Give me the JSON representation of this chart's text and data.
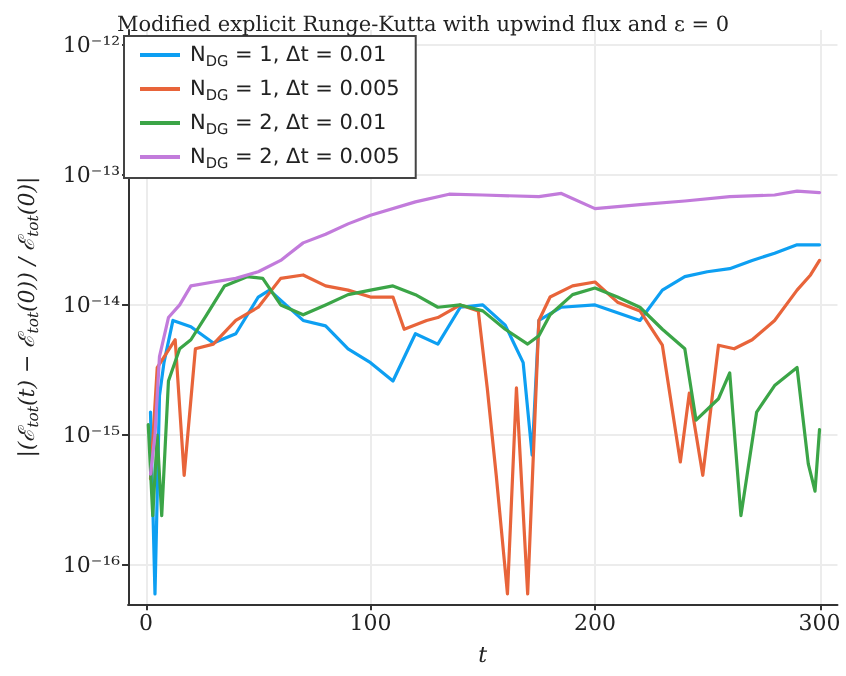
{
  "chart_data": {
    "type": "line",
    "title": "Modified explicit Runge-Kutta with upwind flux and ε = 0",
    "xlabel": "t",
    "ylabel": "|(ℰ$_{tot}$(t) − ℰ$_{tot}$(0)) / ℰ$_{tot}$(0)|",
    "xlim": [
      -8,
      308
    ],
    "xticks": [
      0,
      100,
      200,
      300
    ],
    "ylim": [
      5e-17,
      1.3e-12
    ],
    "log": "y",
    "yticks": [
      {
        "value": 1e-16,
        "label": "10⁻¹⁶"
      },
      {
        "value": 1e-15,
        "label": "10⁻¹⁵"
      },
      {
        "value": 1e-14,
        "label": "10⁻¹⁴"
      },
      {
        "value": 1e-13,
        "label": "10⁻¹³"
      },
      {
        "value": 1e-12,
        "label": "10⁻¹²"
      }
    ],
    "grid": true,
    "legend": "top left",
    "marker": "none",
    "line_style": "solid",
    "series": [
      {
        "name": "N$_{DG}$ = 1, Δt = 0.01",
        "color": "#0d9ff2",
        "x": [
          2,
          4,
          6,
          8,
          12,
          20,
          30,
          40,
          50,
          55,
          70,
          80,
          90,
          100,
          110,
          120,
          130,
          140,
          150,
          160,
          168,
          172,
          175,
          185,
          200,
          220,
          230,
          240,
          250,
          260,
          270,
          280,
          290,
          300
        ],
        "values": [
          1.5e-15,
          6e-17,
          2e-15,
          3.6e-15,
          7.6e-15,
          6.8e-15,
          5.1e-15,
          6e-15,
          1.15e-14,
          1.3e-14,
          7.6e-15,
          6.9e-15,
          4.6e-15,
          3.6e-15,
          2.6e-15,
          6e-15,
          5e-15,
          9.6e-15,
          1e-14,
          7e-15,
          3.6e-15,
          7e-16,
          7.6e-15,
          9.6e-15,
          1e-14,
          7.6e-15,
          1.3e-14,
          1.65e-14,
          1.8e-14,
          1.9e-14,
          2.2e-14,
          2.5e-14,
          2.9e-14,
          2.9e-14
        ]
      },
      {
        "name": "N$_{DG}$ = 1, Δt = 0.005",
        "color": "#e8643a",
        "x": [
          2,
          5,
          13,
          17,
          22,
          30,
          40,
          50,
          60,
          70,
          80,
          90,
          100,
          110,
          115,
          125,
          130,
          140,
          148,
          152,
          156,
          161,
          165,
          170,
          175,
          180,
          190,
          200,
          210,
          220,
          230,
          238,
          242,
          248,
          255,
          262,
          270,
          280,
          290,
          296,
          300
        ],
        "values": [
          4.6e-16,
          3.3e-15,
          5.4e-15,
          4.9e-16,
          4.6e-15,
          5e-15,
          7.6e-15,
          9.6e-15,
          1.6e-14,
          1.7e-14,
          1.4e-14,
          1.3e-14,
          1.15e-14,
          1.15e-14,
          6.5e-15,
          7.6e-15,
          8e-15,
          1e-14,
          9e-15,
          2.3e-15,
          4.9e-16,
          6e-17,
          2.3e-15,
          6e-17,
          7.6e-15,
          1.15e-14,
          1.4e-14,
          1.5e-14,
          1.05e-14,
          9e-15,
          4.9e-15,
          6.2e-16,
          2.1e-15,
          4.9e-16,
          4.9e-15,
          4.6e-15,
          5.4e-15,
          7.6e-15,
          1.3e-14,
          1.7e-14,
          2.2e-14
        ]
      },
      {
        "name": "N$_{DG}$ = 2, Δt = 0.01",
        "color": "#3ba547",
        "x": [
          1,
          3,
          5,
          7,
          10,
          15,
          20,
          27,
          35,
          45,
          52,
          60,
          70,
          80,
          90,
          100,
          110,
          120,
          130,
          140,
          150,
          160,
          170,
          175,
          180,
          190,
          200,
          210,
          220,
          230,
          240,
          245,
          255,
          260,
          265,
          272,
          280,
          290,
          295,
          298,
          300
        ],
        "values": [
          1.2e-15,
          2.4e-16,
          1e-15,
          2.4e-16,
          2.6e-15,
          4.6e-15,
          5.4e-15,
          8.4e-15,
          1.4e-14,
          1.65e-14,
          1.6e-14,
          1e-14,
          8.4e-15,
          1e-14,
          1.2e-14,
          1.3e-14,
          1.4e-14,
          1.2e-14,
          9.6e-15,
          1e-14,
          9e-15,
          6.5e-15,
          5e-15,
          5.8e-15,
          8.4e-15,
          1.2e-14,
          1.35e-14,
          1.15e-14,
          9.6e-15,
          6.5e-15,
          4.6e-15,
          1.3e-15,
          1.9e-15,
          3e-15,
          2.4e-16,
          1.5e-15,
          2.4e-15,
          3.3e-15,
          6e-16,
          3.7e-16,
          1.1e-15
        ]
      },
      {
        "name": "N$_{DG}$ = 2, Δt = 0.005",
        "color": "#c27bdb",
        "x": [
          2,
          4,
          6,
          10,
          15,
          20,
          30,
          40,
          50,
          60,
          70,
          80,
          90,
          100,
          120,
          135,
          150,
          175,
          185,
          200,
          220,
          240,
          260,
          280,
          290,
          300
        ],
        "values": [
          5e-16,
          1e-15,
          4e-15,
          8e-15,
          1e-14,
          1.4e-14,
          1.5e-14,
          1.6e-14,
          1.8e-14,
          2.2e-14,
          3e-14,
          3.5e-14,
          4.2e-14,
          4.9e-14,
          6.2e-14,
          7.1e-14,
          7e-14,
          6.8e-14,
          7.2e-14,
          5.5e-14,
          5.9e-14,
          6.3e-14,
          6.8e-14,
          7e-14,
          7.5e-14,
          7.3e-14
        ]
      }
    ]
  }
}
